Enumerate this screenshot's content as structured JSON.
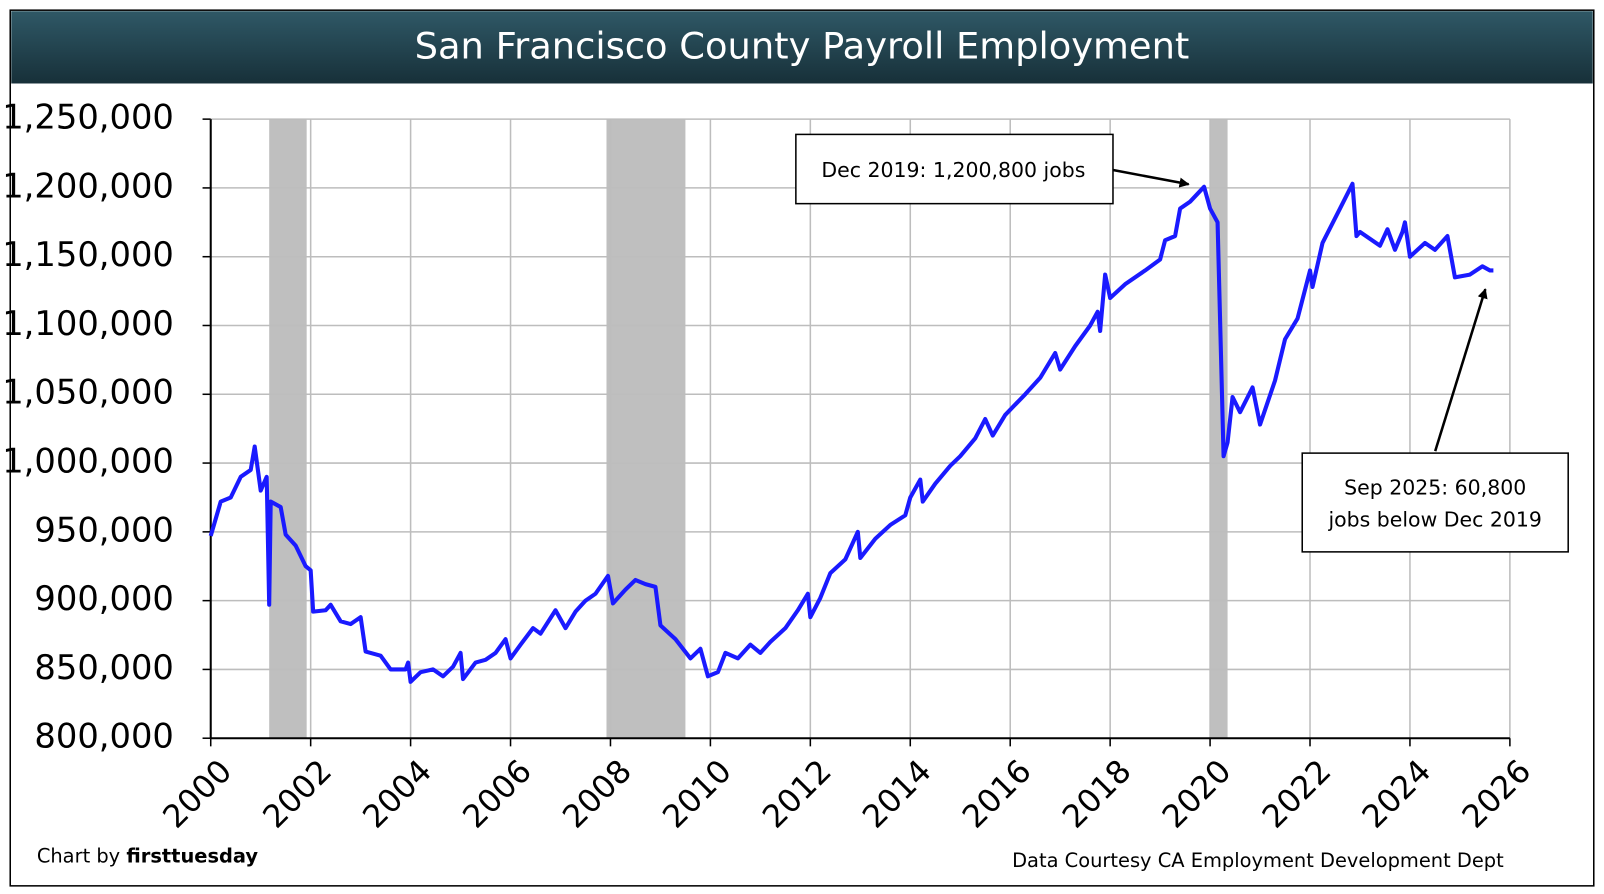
{
  "chart_data": {
    "type": "line",
    "title": "San Francisco County Payroll Employment",
    "color": "#1a1aff",
    "grid": true,
    "xlim": [
      2000,
      2026
    ],
    "xticks": [
      2000,
      2002,
      2004,
      2006,
      2008,
      2010,
      2012,
      2014,
      2016,
      2018,
      2020,
      2022,
      2024,
      2026
    ],
    "ylim": [
      800000,
      1250000
    ],
    "yticks": [
      {
        "value": 800000,
        "label": "800,000"
      },
      {
        "value": 850000,
        "label": "850,000"
      },
      {
        "value": 900000,
        "label": "900,000"
      },
      {
        "value": 950000,
        "label": "950,000"
      },
      {
        "value": 1000000,
        "label": "1,000,000"
      },
      {
        "value": 1050000,
        "label": "1,050,000"
      },
      {
        "value": 1100000,
        "label": "1,100,000"
      },
      {
        "value": 1150000,
        "label": "1,150,000"
      },
      {
        "value": 1200000,
        "label": "1,200,000"
      },
      {
        "value": 1250000,
        "label": "1,250,000"
      }
    ],
    "shaded_periods": [
      [
        2001.17,
        2001.92
      ],
      [
        2007.92,
        2009.5
      ],
      [
        2020.0,
        2020.35
      ]
    ],
    "shade_color": "#bfbfbf",
    "x": [
      2000.0,
      2000.2,
      2000.4,
      2000.6,
      2000.8,
      2000.88,
      2001.0,
      2001.12,
      2001.17,
      2001.2,
      2001.4,
      2001.5,
      2001.7,
      2001.9,
      2002.0,
      2002.05,
      2002.3,
      2002.4,
      2002.6,
      2002.8,
      2003.0,
      2003.1,
      2003.4,
      2003.6,
      2003.9,
      2003.95,
      2004.0,
      2004.2,
      2004.45,
      2004.65,
      2004.85,
      2005.0,
      2005.05,
      2005.3,
      2005.5,
      2005.7,
      2005.9,
      2006.0,
      2006.2,
      2006.45,
      2006.6,
      2006.9,
      2007.1,
      2007.3,
      2007.5,
      2007.7,
      2007.95,
      2008.05,
      2008.3,
      2008.5,
      2008.7,
      2008.9,
      2009.0,
      2009.3,
      2009.6,
      2009.8,
      2009.95,
      2010.15,
      2010.3,
      2010.55,
      2010.8,
      2011.0,
      2011.2,
      2011.5,
      2011.75,
      2011.95,
      2012.0,
      2012.2,
      2012.4,
      2012.7,
      2012.95,
      2013.0,
      2013.3,
      2013.6,
      2013.9,
      2014.0,
      2014.2,
      2014.25,
      2014.5,
      2014.8,
      2015.0,
      2015.3,
      2015.5,
      2015.65,
      2015.9,
      2016.3,
      2016.6,
      2016.9,
      2017.0,
      2017.3,
      2017.6,
      2017.75,
      2017.8,
      2017.9,
      2018.0,
      2018.3,
      2018.7,
      2019.0,
      2019.1,
      2019.3,
      2019.4,
      2019.6,
      2019.88,
      2020.0,
      2020.15,
      2020.27,
      2020.35,
      2020.45,
      2020.6,
      2020.85,
      2021.0,
      2021.3,
      2021.5,
      2021.75,
      2022.0,
      2022.05,
      2022.25,
      2022.6,
      2022.85,
      2022.93,
      2023.0,
      2023.4,
      2023.55,
      2023.7,
      2023.85,
      2023.9,
      2024.0,
      2024.3,
      2024.5,
      2024.75,
      2024.9,
      2025.2,
      2025.45,
      2025.6,
      2025.67
    ],
    "values": [
      947000,
      972000,
      975000,
      990000,
      995000,
      1012000,
      980000,
      990000,
      897000,
      972000,
      968000,
      948000,
      940000,
      925000,
      922000,
      892000,
      893000,
      897000,
      885000,
      883000,
      888000,
      863000,
      860000,
      850000,
      850000,
      855000,
      841000,
      848000,
      850000,
      845000,
      852000,
      862000,
      843000,
      855000,
      857000,
      862000,
      872000,
      858000,
      868000,
      880000,
      876000,
      893000,
      880000,
      892000,
      900000,
      905000,
      918000,
      898000,
      908000,
      915000,
      912000,
      910000,
      882000,
      872000,
      858000,
      865000,
      845000,
      848000,
      862000,
      858000,
      868000,
      862000,
      870000,
      880000,
      893000,
      905000,
      888000,
      902000,
      920000,
      930000,
      950000,
      931000,
      945000,
      955000,
      962000,
      975000,
      988000,
      972000,
      985000,
      998000,
      1005000,
      1018000,
      1032000,
      1020000,
      1035000,
      1050000,
      1062000,
      1080000,
      1068000,
      1085000,
      1100000,
      1110000,
      1096000,
      1137000,
      1120000,
      1130000,
      1140000,
      1148000,
      1162000,
      1165000,
      1185000,
      1190000,
      1200800,
      1185000,
      1175000,
      1005000,
      1015000,
      1048000,
      1037000,
      1055000,
      1028000,
      1060000,
      1090000,
      1105000,
      1140000,
      1128000,
      1160000,
      1185000,
      1203000,
      1165000,
      1168000,
      1158000,
      1170000,
      1155000,
      1168000,
      1175000,
      1150000,
      1160000,
      1155000,
      1165000,
      1135000,
      1137000,
      1143000,
      1140000,
      1140000
    ],
    "annotations": [
      {
        "lines": [
          "Dec 2019: 1,200,800 jobs"
        ]
      },
      {
        "lines": [
          "Sep 2025: 60,800",
          "jobs below Dec 2019"
        ]
      }
    ],
    "credit": [
      "Chart by ",
      "firsttuesday"
    ],
    "source": "Data Courtesy CA Employment Development Dept"
  }
}
